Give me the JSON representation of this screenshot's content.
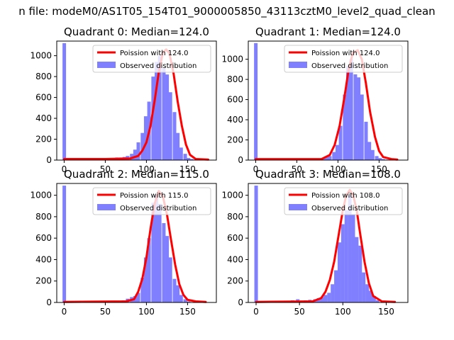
{
  "figure": {
    "suptitle": "n file: modeM0/AS1T05_154T01_9000005850_43113cztM0_level2_quad_clean"
  },
  "colors": {
    "histogram": "#8080ff",
    "poisson": "#ff0000"
  },
  "chart_data": [
    {
      "type": "bar",
      "title": "Quadrant 0: Median=124.0",
      "median": 124.0,
      "xlim": [
        -9,
        185
      ],
      "ylim": [
        0,
        1140
      ],
      "xticks": [
        "0",
        "50",
        "100",
        "150"
      ],
      "yticks": [
        "0",
        "200",
        "400",
        "600",
        "800",
        "1000"
      ],
      "bin_width": 4.3,
      "legend": {
        "placement": "top-right",
        "entries": [
          "Poission with 124.0",
          "Observed distribution"
        ]
      },
      "histogram": {
        "bins": [
          -2,
          2,
          39,
          45,
          50,
          54,
          58,
          62,
          67,
          71,
          75,
          80,
          84,
          88,
          93,
          97,
          101,
          106,
          110,
          114,
          119,
          123,
          127,
          132,
          136,
          140,
          145,
          149,
          153,
          158,
          162
        ],
        "counts": [
          1120,
          5,
          5,
          10,
          10,
          15,
          20,
          25,
          25,
          30,
          40,
          60,
          100,
          170,
          260,
          420,
          560,
          800,
          940,
          1000,
          880,
          820,
          650,
          460,
          260,
          120,
          60,
          20,
          10,
          5,
          2
        ]
      },
      "poisson_curve": {
        "x": [
          0,
          50,
          80,
          90,
          95,
          100,
          105,
          110,
          115,
          120,
          124,
          128,
          133,
          138,
          143,
          148,
          153,
          160,
          175
        ],
        "y": [
          10,
          10,
          15,
          40,
          90,
          170,
          330,
          570,
          840,
          1030,
          1060,
          1020,
          830,
          560,
          330,
          150,
          50,
          10,
          5
        ]
      }
    },
    {
      "type": "bar",
      "title": "Quadrant 1: Median=124.0",
      "median": 124.0,
      "xlim": [
        -9,
        185
      ],
      "ylim": [
        0,
        1180
      ],
      "xticks": [
        "0",
        "50",
        "100",
        "150"
      ],
      "yticks": [
        "0",
        "200",
        "400",
        "600",
        "800",
        "1000"
      ],
      "bin_width": 4.3,
      "legend": {
        "placement": "top-right",
        "entries": [
          "Poission with 124.0",
          "Observed distribution"
        ]
      },
      "histogram": {
        "bins": [
          -2,
          2,
          80,
          84,
          88,
          93,
          97,
          101,
          106,
          110,
          114,
          119,
          123,
          127,
          132,
          136,
          140,
          145,
          149,
          153,
          158,
          162
        ],
        "counts": [
          1160,
          5,
          20,
          30,
          40,
          80,
          150,
          340,
          650,
          930,
          1000,
          850,
          820,
          650,
          380,
          180,
          100,
          40,
          20,
          10,
          5,
          2
        ]
      },
      "poisson_curve": {
        "x": [
          0,
          80,
          90,
          96,
          102,
          108,
          113,
          118,
          124,
          129,
          134,
          139,
          145,
          150,
          155,
          165,
          172
        ],
        "y": [
          10,
          10,
          50,
          150,
          340,
          630,
          900,
          1060,
          1090,
          1000,
          760,
          480,
          230,
          90,
          30,
          10,
          5
        ]
      }
    },
    {
      "type": "bar",
      "title": "Quadrant 2: Median=115.0",
      "median": 115.0,
      "xlim": [
        -9,
        185
      ],
      "ylim": [
        0,
        1110
      ],
      "xticks": [
        "0",
        "50",
        "100",
        "150"
      ],
      "yticks": [
        "0",
        "200",
        "400",
        "600",
        "800",
        "1000"
      ],
      "bin_width": 4.3,
      "legend": {
        "placement": "top-right",
        "entries": [
          "Poission with 115.0",
          "Observed distribution"
        ]
      },
      "histogram": {
        "bins": [
          -2,
          2,
          60,
          70,
          75,
          80,
          84,
          88,
          93,
          97,
          101,
          106,
          110,
          114,
          119,
          123,
          127,
          132,
          136,
          140,
          145,
          149
        ],
        "counts": [
          1090,
          5,
          10,
          20,
          35,
          50,
          60,
          90,
          230,
          420,
          600,
          930,
          1000,
          920,
          740,
          620,
          420,
          220,
          160,
          70,
          30,
          10
        ]
      },
      "poisson_curve": {
        "x": [
          0,
          75,
          85,
          90,
          95,
          100,
          105,
          110,
          115,
          120,
          125,
          130,
          135,
          140,
          145,
          150,
          160,
          172
        ],
        "y": [
          5,
          10,
          30,
          100,
          220,
          420,
          690,
          920,
          1040,
          990,
          820,
          580,
          350,
          170,
          70,
          25,
          10,
          5
        ]
      }
    },
    {
      "type": "bar",
      "title": "Quadrant 3: Median=108.0",
      "median": 108.0,
      "xlim": [
        -9,
        175
      ],
      "ylim": [
        0,
        1110
      ],
      "xticks": [
        "0",
        "50",
        "100",
        "150"
      ],
      "yticks": [
        "0",
        "200",
        "400",
        "600",
        "800",
        "1000"
      ],
      "bin_width": 4.1,
      "legend": {
        "placement": "top-right",
        "entries": [
          "Poission with 108.0",
          "Observed distribution"
        ]
      },
      "histogram": {
        "bins": [
          -2,
          2,
          40,
          46,
          55,
          60,
          66,
          70,
          74,
          78,
          82,
          86,
          90,
          94,
          98,
          102,
          106,
          110,
          114,
          118,
          122,
          126,
          130,
          134,
          138
        ],
        "counts": [
          1090,
          5,
          20,
          30,
          20,
          25,
          30,
          40,
          50,
          70,
          90,
          170,
          300,
          560,
          730,
          860,
          1000,
          820,
          610,
          530,
          280,
          170,
          110,
          60,
          20
        ]
      },
      "poisson_curve": {
        "x": [
          0,
          65,
          75,
          80,
          85,
          90,
          95,
          100,
          104,
          108,
          112,
          116,
          120,
          125,
          130,
          135,
          145,
          160
        ],
        "y": [
          5,
          10,
          40,
          100,
          210,
          380,
          620,
          860,
          1000,
          1050,
          1000,
          860,
          640,
          380,
          180,
          60,
          10,
          5
        ]
      }
    }
  ]
}
